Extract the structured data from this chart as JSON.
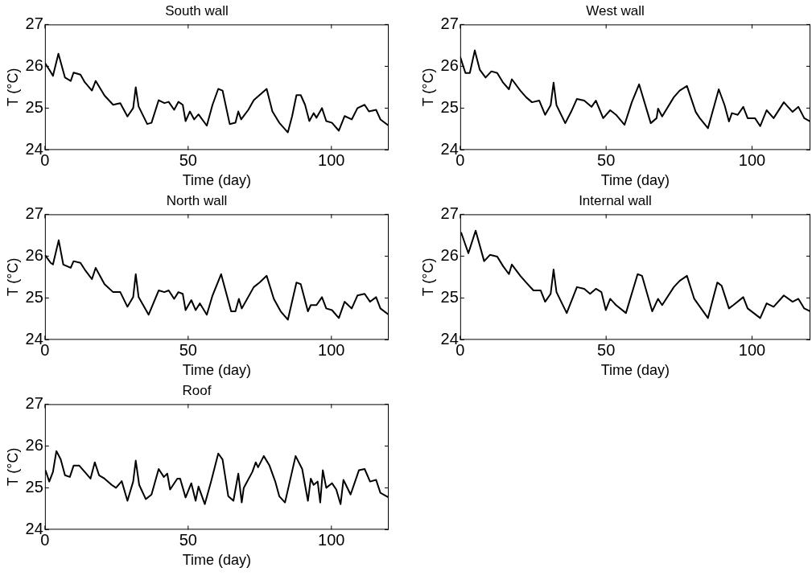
{
  "chart_data": [
    {
      "type": "line",
      "title": "South wall",
      "xlabel": "Time (day)",
      "ylabel": "T (°C)",
      "color": "#000000",
      "marker": "none",
      "line_style": "solid",
      "xlim": [
        0,
        120
      ],
      "ylim": [
        24,
        27
      ],
      "xticks": [
        0,
        50,
        100
      ],
      "yticks": [
        24,
        25,
        26,
        27
      ],
      "x": [
        0,
        1.5,
        2.8,
        4.7,
        7,
        9,
        10,
        12.4,
        13.9,
        16.4,
        17.7,
        20.8,
        23.8,
        26.3,
        28.8,
        30.8,
        31.7,
        32.7,
        35.7,
        37.2,
        39.7,
        41.7,
        43.2,
        45.1,
        46.6,
        48.1,
        49.1,
        50.6,
        52.1,
        53.6,
        56.5,
        58.5,
        60.5,
        62,
        64.5,
        66.5,
        67.5,
        68.5,
        71,
        72.9,
        74.9,
        77.4,
        79.4,
        81.8,
        84.8,
        86.3,
        87.8,
        89.3,
        90.8,
        92.3,
        93.8,
        94.8,
        96.7,
        98.2,
        100.2,
        102.6,
        104.6,
        107.1,
        109.1,
        111.6,
        113.1,
        115.6,
        117.1,
        120
      ],
      "values": [
        26.08,
        25.92,
        25.77,
        26.3,
        25.73,
        25.65,
        25.85,
        25.8,
        25.62,
        25.42,
        25.65,
        25.3,
        25.08,
        25.12,
        24.8,
        25.0,
        25.5,
        25.04,
        24.62,
        24.65,
        25.19,
        25.12,
        25.15,
        24.96,
        25.15,
        25.08,
        24.69,
        24.92,
        24.73,
        24.85,
        24.58,
        25.08,
        25.46,
        25.42,
        24.62,
        24.65,
        24.92,
        24.73,
        24.96,
        25.19,
        25.31,
        25.46,
        24.92,
        24.65,
        24.42,
        24.81,
        25.31,
        25.31,
        25.08,
        24.69,
        24.88,
        24.77,
        25.0,
        24.69,
        24.65,
        24.46,
        24.81,
        24.73,
        25.0,
        25.08,
        24.92,
        24.96,
        24.73,
        24.58
      ]
    },
    {
      "type": "line",
      "title": "West wall",
      "xlabel": "Time (day)",
      "ylabel": "T (°C)",
      "color": "#000000",
      "marker": "none",
      "line_style": "solid",
      "xlim": [
        0,
        120
      ],
      "ylim": [
        24,
        27
      ],
      "xticks": [
        0,
        50,
        100
      ],
      "yticks": [
        24,
        25,
        26,
        27
      ],
      "x": [
        0,
        1.8,
        3.3,
        5,
        6.7,
        8.7,
        10.7,
        12.7,
        14.7,
        16.7,
        17.7,
        20.6,
        22.6,
        24.6,
        27.1,
        29.1,
        31,
        32,
        33,
        36,
        38,
        40,
        42.5,
        45,
        46.5,
        49,
        51.4,
        53.4,
        56.3,
        58.8,
        61.3,
        65.3,
        67.3,
        67.8,
        69.2,
        73.2,
        75.2,
        77.7,
        80.7,
        82.1,
        84.9,
        87.1,
        88.6,
        90.6,
        92.1,
        93.1,
        95.1,
        97,
        98.5,
        101,
        102.8,
        105,
        107.4,
        110.9,
        113.9,
        115.9,
        117.9,
        120
      ],
      "values": [
        26.23,
        25.84,
        25.84,
        26.38,
        25.92,
        25.73,
        25.88,
        25.84,
        25.61,
        25.45,
        25.69,
        25.42,
        25.26,
        25.14,
        25.18,
        24.84,
        25.07,
        25.61,
        25.07,
        24.64,
        24.91,
        25.22,
        25.18,
        25.03,
        25.18,
        24.76,
        24.95,
        24.84,
        24.6,
        25.14,
        25.57,
        24.64,
        24.76,
        24.99,
        24.8,
        25.26,
        25.42,
        25.53,
        24.91,
        24.76,
        24.52,
        25.07,
        25.45,
        25.07,
        24.68,
        24.88,
        24.84,
        25.03,
        24.76,
        24.76,
        24.57,
        24.95,
        24.76,
        25.14,
        24.91,
        25.03,
        24.76,
        24.68
      ]
    },
    {
      "type": "line",
      "title": "North wall",
      "xlabel": "Time (day)",
      "ylabel": "T (°C)",
      "color": "#000000",
      "marker": "none",
      "line_style": "solid",
      "xlim": [
        0,
        120
      ],
      "ylim": [
        24,
        27
      ],
      "xticks": [
        0,
        50,
        100
      ],
      "yticks": [
        24,
        25,
        26,
        27
      ],
      "x": [
        0,
        2,
        2.8,
        4.8,
        6.4,
        9,
        10,
        12.4,
        13.9,
        16.4,
        17.7,
        20.8,
        23.8,
        26.3,
        28.8,
        30.8,
        31.7,
        32.7,
        36.2,
        39.7,
        41.7,
        43.2,
        45.1,
        46.6,
        48.1,
        49.1,
        51.1,
        52.6,
        54.1,
        56.5,
        58.5,
        61.5,
        65,
        66.5,
        67.7,
        68.7,
        72.9,
        74.9,
        77.4,
        79.9,
        82.3,
        84.8,
        87.8,
        89.3,
        91.8,
        92.8,
        94.8,
        96.7,
        98.2,
        100.2,
        102.6,
        104.6,
        107.1,
        109.1,
        111.6,
        113.5,
        115.6,
        117.1,
        120
      ],
      "values": [
        26.03,
        25.84,
        25.8,
        26.38,
        25.8,
        25.72,
        25.88,
        25.84,
        25.68,
        25.45,
        25.72,
        25.33,
        25.14,
        25.14,
        24.79,
        25.02,
        25.57,
        25.02,
        24.6,
        25.18,
        25.14,
        25.18,
        24.98,
        25.14,
        25.1,
        24.71,
        24.95,
        24.71,
        24.87,
        24.6,
        25.06,
        25.57,
        24.68,
        24.68,
        24.98,
        24.75,
        25.26,
        25.37,
        25.53,
        24.98,
        24.68,
        24.48,
        25.37,
        25.33,
        24.68,
        24.83,
        24.83,
        25.02,
        24.75,
        24.71,
        24.52,
        24.91,
        24.75,
        25.06,
        25.1,
        24.91,
        25.02,
        24.75,
        24.6
      ]
    },
    {
      "type": "line",
      "title": "Internal wall",
      "xlabel": "Time (day)",
      "ylabel": "T (°C)",
      "color": "#000000",
      "marker": "none",
      "line_style": "solid",
      "xlim": [
        0,
        120
      ],
      "ylim": [
        24,
        27
      ],
      "xticks": [
        0,
        50,
        100
      ],
      "yticks": [
        24,
        25,
        26,
        27
      ],
      "x": [
        0.3,
        2.8,
        5.3,
        8.2,
        10.2,
        12.7,
        14.7,
        16.7,
        17.7,
        20.6,
        22.6,
        25.1,
        27.6,
        29.1,
        31,
        32,
        33,
        36.5,
        40,
        42.5,
        44.5,
        46.5,
        48.4,
        49.9,
        51.4,
        53.4,
        56.8,
        60.8,
        62.3,
        65.8,
        67.8,
        69.2,
        73.2,
        75.2,
        77.7,
        80.2,
        84.9,
        88.1,
        89.6,
        92.1,
        93.6,
        97,
        98.5,
        102.8,
        105,
        107.4,
        110.9,
        113.9,
        115.9,
        117.9,
        120
      ],
      "values": [
        26.57,
        26.07,
        26.61,
        25.88,
        26.03,
        25.99,
        25.76,
        25.57,
        25.8,
        25.53,
        25.37,
        25.18,
        25.18,
        24.91,
        25.1,
        25.68,
        25.14,
        24.64,
        25.26,
        25.22,
        25.1,
        25.22,
        25.14,
        24.71,
        24.98,
        24.83,
        24.64,
        25.57,
        25.53,
        24.68,
        24.98,
        24.83,
        25.26,
        25.41,
        25.53,
        24.98,
        24.52,
        25.37,
        25.29,
        24.75,
        24.83,
        25.02,
        24.75,
        24.52,
        24.87,
        24.79,
        25.06,
        24.91,
        24.98,
        24.75,
        24.68
      ]
    },
    {
      "type": "line",
      "title": "Roof",
      "xlabel": "Time (day)",
      "ylabel": "T (°C)",
      "color": "#000000",
      "marker": "none",
      "line_style": "solid",
      "xlim": [
        0,
        120
      ],
      "ylim": [
        24,
        27
      ],
      "xticks": [
        0,
        50,
        100
      ],
      "yticks": [
        24,
        25,
        26,
        27
      ],
      "x": [
        0.2,
        1.5,
        2.8,
        4,
        5.5,
        7,
        8.7,
        10,
        12,
        13.9,
        15.9,
        17.4,
        18.9,
        20.8,
        23.3,
        24.8,
        26.8,
        28.8,
        30.8,
        31.7,
        32.9,
        35.2,
        37.2,
        39.7,
        41.5,
        42.7,
        43.7,
        46.2,
        47.2,
        49.1,
        51.1,
        52.6,
        53.6,
        55.8,
        58,
        60.5,
        62,
        64,
        65.8,
        67.5,
        68.7,
        69.4,
        72.4,
        73.6,
        74.4,
        76.4,
        78.4,
        80.4,
        81.8,
        83.8,
        87.5,
        89.8,
        91.8,
        92.8,
        93.8,
        95.2,
        96.1,
        97,
        98.2,
        100.2,
        101.7,
        103.2,
        104.2,
        106.7,
        109.6,
        111.6,
        113.5,
        115.6,
        117.1,
        120
      ],
      "values": [
        25.42,
        25.15,
        25.38,
        25.88,
        25.68,
        25.3,
        25.26,
        25.53,
        25.53,
        25.38,
        25.22,
        25.61,
        25.3,
        25.22,
        25.07,
        25.0,
        25.16,
        24.69,
        25.15,
        25.65,
        25.07,
        24.73,
        24.84,
        25.45,
        25.26,
        25.34,
        24.96,
        25.22,
        25.22,
        24.77,
        25.11,
        24.69,
        25.03,
        24.61,
        25.15,
        25.82,
        25.68,
        24.8,
        24.69,
        25.34,
        24.65,
        25.0,
        25.38,
        25.61,
        25.49,
        25.76,
        25.53,
        25.15,
        24.8,
        24.65,
        25.76,
        25.45,
        24.69,
        25.22,
        25.07,
        25.15,
        24.65,
        25.42,
        25.0,
        25.11,
        24.96,
        24.61,
        25.19,
        24.84,
        25.42,
        25.45,
        25.15,
        25.19,
        24.88,
        24.77
      ]
    }
  ]
}
